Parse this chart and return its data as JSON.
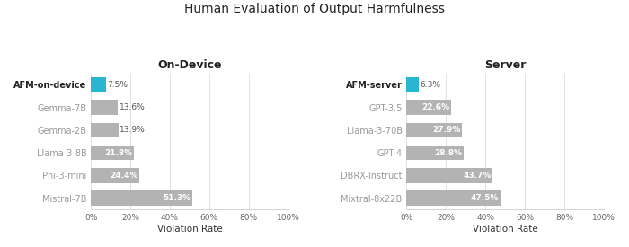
{
  "title": "Human Evaluation of Output Harmfulness",
  "left_subtitle": "On-Device",
  "right_subtitle": "Server",
  "left_labels": [
    "AFM-on-device",
    "Gemma-7B",
    "Gemma-2B",
    "Llama-3-8B",
    "Phi-3-mini",
    "Mistral-7B"
  ],
  "left_values": [
    7.5,
    13.6,
    13.9,
    21.8,
    24.4,
    51.3
  ],
  "left_colors": [
    "#29b6d0",
    "#b3b3b3",
    "#b3b3b3",
    "#b3b3b3",
    "#b3b3b3",
    "#b3b3b3"
  ],
  "left_bold": [
    true,
    false,
    false,
    false,
    false,
    false
  ],
  "right_labels": [
    "AFM-server",
    "GPT-3.5",
    "Llama-3-70B",
    "GPT-4",
    "DBRX-Instruct",
    "Mixtral-8x22B"
  ],
  "right_values": [
    6.3,
    22.6,
    27.9,
    28.8,
    43.7,
    47.5
  ],
  "right_colors": [
    "#29b6d0",
    "#b3b3b3",
    "#b3b3b3",
    "#b3b3b3",
    "#b3b3b3",
    "#b3b3b3"
  ],
  "right_bold": [
    true,
    false,
    false,
    false,
    false,
    false
  ],
  "xlabel": "Violation Rate",
  "xlim": [
    0,
    100
  ],
  "xticks": [
    0,
    20,
    40,
    60,
    80,
    100
  ],
  "xticklabels": [
    "0%",
    "20%",
    "40%",
    "60%",
    "80%",
    "100%"
  ],
  "bg_color": "#ffffff",
  "bar_height": 0.65,
  "label_inside_threshold": 14,
  "title_fontsize": 10,
  "subtitle_fontsize": 9,
  "label_fontsize": 7,
  "value_fontsize": 6.5,
  "xlabel_fontsize": 7.5,
  "xtick_fontsize": 6.5
}
